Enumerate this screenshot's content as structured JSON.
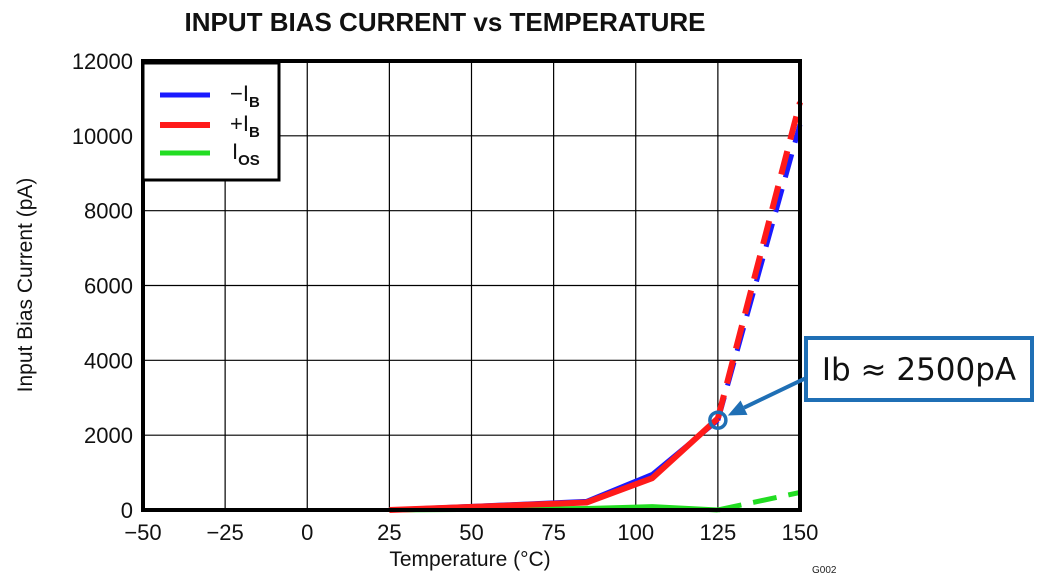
{
  "chart_data": {
    "type": "line",
    "title": "INPUT BIAS CURRENT vs TEMPERATURE",
    "xlabel": "Temperature (°C)",
    "ylabel": "Input Bias Current (pA)",
    "xlim": [
      -50,
      150
    ],
    "ylim": [
      0,
      12000
    ],
    "xticks": [
      -50,
      -25,
      0,
      25,
      50,
      75,
      100,
      125,
      150
    ],
    "yticks": [
      0,
      2000,
      4000,
      6000,
      8000,
      10000,
      12000
    ],
    "grid": true,
    "legend_position": "top-left",
    "series": [
      {
        "name": "−IB",
        "label_main": "−I",
        "label_sub": "B",
        "color": "#1a1aff",
        "solid": [
          [
            25,
            0
          ],
          [
            85,
            230
          ],
          [
            105,
            950
          ],
          [
            125,
            2400
          ]
        ],
        "dashed": [
          [
            125,
            2400
          ],
          [
            150,
            10300
          ]
        ]
      },
      {
        "name": "+IB",
        "label_main": "+I",
        "label_sub": "B",
        "color": "#ff1a1a",
        "solid": [
          [
            25,
            0
          ],
          [
            85,
            200
          ],
          [
            105,
            850
          ],
          [
            125,
            2450
          ]
        ],
        "dashed": [
          [
            125,
            2450
          ],
          [
            150,
            10900
          ]
        ]
      },
      {
        "name": "IOS",
        "label_main": "I",
        "label_sub": "OS",
        "color": "#22dd22",
        "solid": [
          [
            25,
            0
          ],
          [
            85,
            40
          ],
          [
            105,
            90
          ],
          [
            125,
            0
          ]
        ],
        "dashed": [
          [
            125,
            0
          ],
          [
            150,
            470
          ]
        ]
      }
    ],
    "annotation": {
      "text": "Ib ≈ 2500pA",
      "point": [
        125,
        2400
      ],
      "color": "#1f6fb5"
    },
    "figure_id": "G002"
  }
}
